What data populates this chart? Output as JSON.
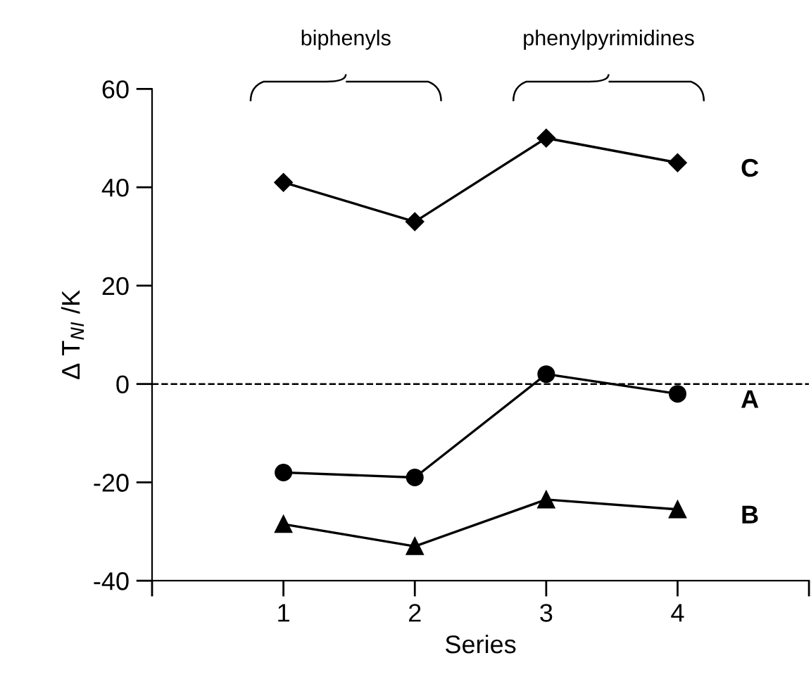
{
  "chart_data": {
    "type": "line",
    "xlabel": "Series",
    "ylabel": "Δ T$_{NI}$ /K",
    "x": [
      1,
      2,
      3,
      4
    ],
    "series": [
      {
        "name": "C",
        "color": "#000000",
        "marker": "diamond",
        "values": [
          41,
          33,
          50,
          45
        ]
      },
      {
        "name": "A",
        "color": "#000000",
        "marker": "circle",
        "values": [
          -18,
          -19,
          2,
          -2
        ]
      },
      {
        "name": "B",
        "color": "#000000",
        "marker": "triangle",
        "values": [
          -28.5,
          -33,
          -23.5,
          -25.5
        ]
      }
    ],
    "xlim": [
      0,
      5
    ],
    "xticks": [
      {
        "value": 0,
        "label": null
      },
      1,
      2,
      3,
      4,
      {
        "value": 5,
        "label": null
      }
    ],
    "ylim": [
      -40,
      60
    ],
    "yticks": [
      -40,
      -20,
      0,
      20,
      40,
      60
    ],
    "ref_lines": [
      {
        "axis": "y",
        "value": 0,
        "line_style": "dashed",
        "color": "#000000"
      }
    ],
    "annotations": [
      "biphenyls",
      "phenylpyrimidines"
    ],
    "grid": false,
    "legend": false,
    "line_style": "solid"
  }
}
